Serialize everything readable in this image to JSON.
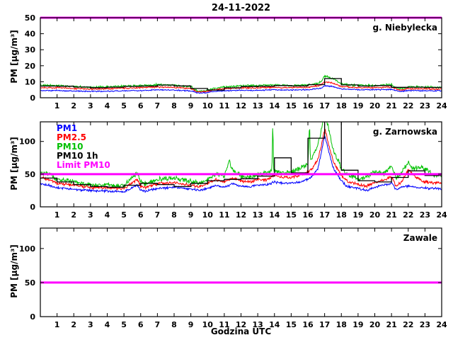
{
  "figure": {
    "title": "24-11-2022",
    "xlabel": "Godzina UTC",
    "ylabel": "PM [µg/m³]"
  },
  "legend": {
    "entries": [
      {
        "label": "PM1",
        "color": "#0000ff"
      },
      {
        "label": "PM2.5",
        "color": "#ff0000"
      },
      {
        "label": "PM10",
        "color": "#00c000"
      },
      {
        "label": "PM10 1h",
        "color": "#000000"
      },
      {
        "label": "Limit PM10",
        "color": "#ff00ff"
      }
    ]
  },
  "chart_data": [
    {
      "type": "line",
      "station": "g. Niebylecka",
      "xlim": [
        0,
        24
      ],
      "ylim": [
        0,
        50
      ],
      "xticks": [
        1,
        2,
        3,
        4,
        5,
        6,
        7,
        8,
        9,
        10,
        11,
        12,
        13,
        14,
        15,
        16,
        17,
        18,
        19,
        20,
        21,
        22,
        23,
        24
      ],
      "yticks": [
        0,
        10,
        20,
        30,
        40,
        50
      ],
      "limit": {
        "label": "Limit PM10",
        "value": 50,
        "color": "#ff00ff"
      },
      "series": [
        {
          "name": "PM10",
          "color": "#00c000",
          "noise": 0.8,
          "x": [
            0,
            1,
            2,
            3,
            4,
            5,
            6,
            7,
            8,
            9,
            9.4,
            10,
            10.4,
            11,
            12,
            13,
            14,
            15,
            16,
            16.8,
            17,
            17.5,
            18,
            19,
            20,
            21,
            21.5,
            22,
            23,
            24
          ],
          "v": [
            7.6,
            7.7,
            7.0,
            6.5,
            6.8,
            7.3,
            7.5,
            8.2,
            7.8,
            7.0,
            4.2,
            4.6,
            6.0,
            6.8,
            7.5,
            7.5,
            8.0,
            7.6,
            8.0,
            10.0,
            13.5,
            12.0,
            8.5,
            7.6,
            7.6,
            8.2,
            5.5,
            6.8,
            6.7,
            6.5
          ]
        },
        {
          "name": "PM2.5",
          "color": "#ff0000",
          "noise": 0.55,
          "x": [
            0,
            1,
            2,
            3,
            4,
            5,
            6,
            7,
            8,
            9,
            9.4,
            10,
            10.4,
            11,
            12,
            13,
            14,
            15,
            16,
            16.8,
            17,
            17.5,
            18,
            19,
            20,
            21,
            21.5,
            22,
            23,
            24
          ],
          "v": [
            6.2,
            6.3,
            5.8,
            5.4,
            5.6,
            6.0,
            6.2,
            6.7,
            6.4,
            5.8,
            3.6,
            3.9,
            5.0,
            5.6,
            6.2,
            6.2,
            6.5,
            6.2,
            6.5,
            8.0,
            10.0,
            9.2,
            7.0,
            6.3,
            6.3,
            6.6,
            4.6,
            5.6,
            5.5,
            5.4
          ]
        },
        {
          "name": "PM1",
          "color": "#0000ff",
          "noise": 0.45,
          "x": [
            0,
            1,
            2,
            3,
            4,
            5,
            6,
            7,
            8,
            9,
            9.4,
            10,
            10.4,
            11,
            12,
            13,
            14,
            15,
            16,
            16.8,
            17,
            17.5,
            18,
            19,
            20,
            21,
            21.5,
            22,
            23,
            24
          ],
          "v": [
            4.5,
            4.6,
            4.2,
            4.0,
            4.1,
            4.4,
            4.5,
            5.0,
            4.8,
            4.3,
            3.0,
            3.2,
            4.0,
            4.3,
            4.7,
            4.7,
            5.0,
            4.8,
            5.0,
            6.0,
            7.5,
            7.0,
            5.5,
            5.0,
            5.0,
            5.2,
            3.8,
            4.5,
            4.4,
            4.3
          ]
        }
      ],
      "step_series": {
        "name": "PM10 1h",
        "color": "#000000",
        "values": [
          7.3,
          7.2,
          6.7,
          6.3,
          6.6,
          7.1,
          7.3,
          7.9,
          7.4,
          5.8,
          4.8,
          6.2,
          7.0,
          7.2,
          7.6,
          7.4,
          8.2,
          12.0,
          8.0,
          7.3,
          7.6,
          6.5,
          6.6,
          6.4
        ]
      }
    },
    {
      "type": "line",
      "station": "g. Zarnowska",
      "xlim": [
        0,
        24
      ],
      "ylim": [
        0,
        130
      ],
      "xticks": [
        1,
        2,
        3,
        4,
        5,
        6,
        7,
        8,
        9,
        10,
        11,
        12,
        13,
        14,
        15,
        16,
        17,
        18,
        19,
        20,
        21,
        22,
        23,
        24
      ],
      "yticks": [
        0,
        50,
        100
      ],
      "limit": {
        "label": "Limit PM10",
        "value": 50,
        "color": "#ff00ff"
      },
      "series": [
        {
          "name": "PM10",
          "color": "#00c000",
          "noise": 4.5,
          "x": [
            0,
            0.5,
            1,
            2,
            3,
            4,
            5,
            5.8,
            6,
            6.3,
            7,
            8,
            9,
            9.5,
            10,
            10.5,
            11,
            11.3,
            11.5,
            12,
            12.5,
            13,
            13.5,
            13.85,
            13.9,
            13.95,
            14.5,
            15,
            15.5,
            16,
            16.1,
            16.15,
            16.3,
            16.6,
            16.9,
            17,
            17.2,
            17.5,
            18,
            18.3,
            19,
            19.5,
            20,
            20.5,
            21,
            21.3,
            21.6,
            22,
            22.3,
            22.6,
            23,
            23.5,
            24
          ],
          "v": [
            52,
            50,
            42,
            38,
            34,
            33,
            32,
            52,
            38,
            35,
            42,
            44,
            39,
            36,
            42,
            50,
            46,
            72,
            55,
            48,
            45,
            50,
            52,
            55,
            135,
            55,
            52,
            54,
            58,
            66,
            130,
            70,
            78,
            95,
            130,
            140,
            125,
            88,
            60,
            50,
            42,
            46,
            55,
            50,
            62,
            45,
            52,
            68,
            57,
            62,
            58,
            50,
            48
          ]
        },
        {
          "name": "PM2.5",
          "color": "#ff0000",
          "noise": 2.8,
          "x": [
            0,
            0.5,
            1,
            2,
            3,
            4,
            5,
            5.8,
            6,
            6.3,
            7,
            8,
            9,
            9.5,
            10,
            10.5,
            11,
            11.5,
            12,
            12.5,
            13,
            13.5,
            14,
            14.5,
            15,
            15.5,
            16,
            16.3,
            16.6,
            16.9,
            17,
            17.2,
            17.5,
            18,
            18.3,
            19,
            19.5,
            20,
            20.5,
            21,
            21.3,
            21.6,
            22,
            22.5,
            23,
            23.5,
            24
          ],
          "v": [
            44,
            42,
            36,
            33,
            30,
            29,
            28,
            42,
            32,
            30,
            35,
            37,
            33,
            31,
            35,
            41,
            38,
            44,
            40,
            38,
            42,
            41,
            48,
            45,
            45,
            48,
            53,
            60,
            72,
            105,
            120,
            100,
            70,
            48,
            40,
            34,
            31,
            37,
            41,
            45,
            32,
            38,
            57,
            45,
            38,
            37,
            36
          ]
        },
        {
          "name": "PM1",
          "color": "#0000ff",
          "noise": 2.2,
          "x": [
            0,
            0.5,
            1,
            2,
            3,
            4,
            5,
            5.8,
            6,
            6.3,
            7,
            8,
            9,
            9.5,
            10,
            10.5,
            11,
            11.5,
            12,
            12.5,
            13,
            13.5,
            14,
            14.5,
            15,
            15.5,
            16,
            16.3,
            16.6,
            16.9,
            17,
            17.2,
            17.5,
            18,
            18.3,
            19,
            19.5,
            20,
            20.5,
            21,
            21.3,
            21.6,
            22,
            22.5,
            23,
            23.5,
            24
          ],
          "v": [
            35,
            33,
            29,
            27,
            25,
            24,
            23,
            33,
            26,
            24,
            28,
            30,
            27,
            25,
            28,
            33,
            30,
            35,
            32,
            30,
            34,
            33,
            38,
            36,
            36,
            38,
            42,
            48,
            58,
            95,
            110,
            90,
            60,
            40,
            32,
            28,
            25,
            30,
            33,
            36,
            26,
            30,
            32,
            30,
            29,
            28,
            27
          ]
        }
      ],
      "step_series": {
        "name": "PM10 1h",
        "color": "#000000",
        "values": [
          44,
          38,
          34,
          31,
          30,
          33,
          36,
          34,
          31,
          36,
          40,
          42,
          43,
          47,
          75,
          52,
          105,
          132,
          56,
          40,
          38,
          45,
          55,
          48
        ]
      }
    },
    {
      "type": "line",
      "station": "Zawale",
      "xlim": [
        0,
        24
      ],
      "ylim": [
        0,
        130
      ],
      "xticks": [
        1,
        2,
        3,
        4,
        5,
        6,
        7,
        8,
        9,
        10,
        11,
        12,
        13,
        14,
        15,
        16,
        17,
        18,
        19,
        20,
        21,
        22,
        23,
        24
      ],
      "yticks": [
        0,
        50,
        100
      ],
      "limit": {
        "label": "Limit PM10",
        "value": 50,
        "color": "#ff00ff"
      },
      "series": [],
      "step_series": null
    }
  ]
}
